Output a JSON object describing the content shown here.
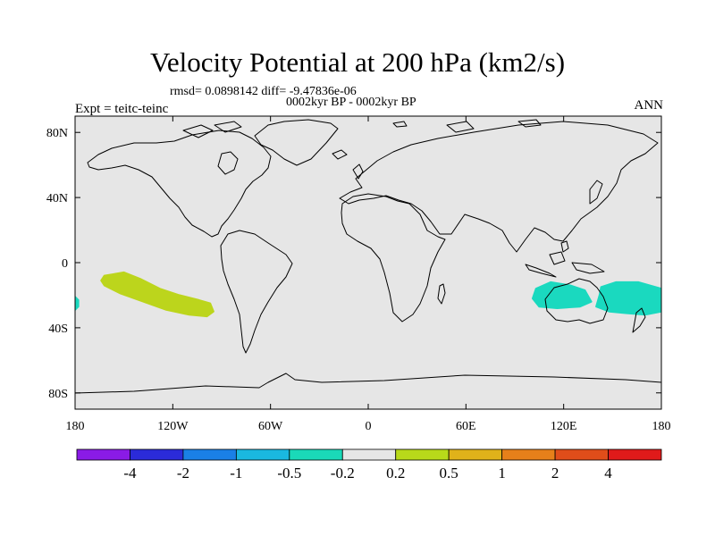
{
  "title": "Velocity Potential at 200 hPa (km2/s)",
  "stats": "rmsd= 0.0898142 diff= -9.47836e-06",
  "period": "0002kyr BP - 0002kyr BP",
  "expt": "Expt = teitc-teinc",
  "season": "ANN",
  "chart_data": {
    "type": "heatmap",
    "projection": "cylindrical-equidistant",
    "lon_range": [
      -180,
      180
    ],
    "lat_range": [
      -90,
      90
    ],
    "lon_ticks": [
      -180,
      -120,
      -60,
      0,
      60,
      120,
      180
    ],
    "lon_tick_labels": [
      "180",
      "120W",
      "60W",
      "0",
      "60E",
      "120E",
      "180"
    ],
    "lat_ticks": [
      80,
      40,
      0,
      -40,
      -80
    ],
    "lat_tick_labels": [
      "80N",
      "40N",
      "0",
      "40S",
      "80S"
    ],
    "background_color": "#e6e6e6",
    "levels": [
      -4,
      -2,
      -1,
      -0.5,
      -0.2,
      0.2,
      0.5,
      1,
      2,
      4
    ],
    "level_labels": [
      "-4",
      "-2",
      "-1",
      "-0.5",
      "-0.2",
      "0.2",
      "0.5",
      "1",
      "2",
      "4"
    ],
    "colors": [
      "#8a1be6",
      "#2b2bd9",
      "#1a80e6",
      "#1ab8e0",
      "#1ad9b8",
      "#e6e6e6",
      "#b8d91a",
      "#e0b21a",
      "#e6801a",
      "#e04d1a",
      "#e01a1a"
    ],
    "anomalies": [
      {
        "name": "central-pacific-positive",
        "value_range": [
          0.2,
          0.5
        ],
        "color": "#bcd51c",
        "outline": [
          [
            -162,
            -8
          ],
          [
            -150,
            -6
          ],
          [
            -140,
            -10
          ],
          [
            -128,
            -16
          ],
          [
            -116,
            -20
          ],
          [
            -104,
            -23
          ],
          [
            -97,
            -25
          ],
          [
            -95,
            -30
          ],
          [
            -99,
            -33
          ],
          [
            -110,
            -32
          ],
          [
            -124,
            -29
          ],
          [
            -138,
            -24
          ],
          [
            -152,
            -19
          ],
          [
            -162,
            -14
          ],
          [
            -164,
            -11
          ]
        ]
      },
      {
        "name": "dateline-edge-negative",
        "value_range": [
          -0.5,
          -0.2
        ],
        "color": "#1ad9bf",
        "outline": [
          [
            -180,
            -21
          ],
          [
            -178,
            -23
          ],
          [
            -178,
            -27
          ],
          [
            -180,
            -29
          ]
        ]
      },
      {
        "name": "australia-west-negative",
        "value_range": [
          -0.5,
          -0.2
        ],
        "color": "#1ad9bf",
        "outline": [
          [
            103,
            -16
          ],
          [
            112,
            -12
          ],
          [
            124,
            -14
          ],
          [
            133,
            -17
          ],
          [
            137,
            -24
          ],
          [
            130,
            -27
          ],
          [
            116,
            -28
          ],
          [
            105,
            -27
          ],
          [
            101,
            -22
          ]
        ]
      },
      {
        "name": "australia-east-negative",
        "value_range": [
          -0.5,
          -0.2
        ],
        "color": "#1ad9bf",
        "outline": [
          [
            143,
            -15
          ],
          [
            152,
            -12
          ],
          [
            166,
            -12
          ],
          [
            180,
            -16
          ],
          [
            180,
            -30
          ],
          [
            170,
            -32
          ],
          [
            158,
            -31
          ],
          [
            148,
            -30
          ],
          [
            140,
            -27
          ],
          [
            142,
            -20
          ]
        ]
      }
    ]
  }
}
